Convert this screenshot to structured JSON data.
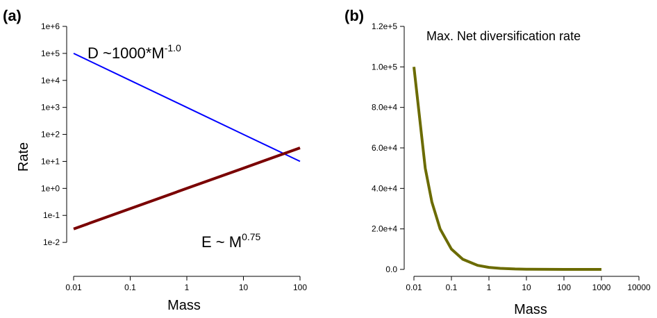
{
  "chart_data": [
    {
      "panel_label": "(a)",
      "type": "line",
      "xscale": "log",
      "yscale": "log",
      "xlabel": "Mass",
      "ylabel": "Rate",
      "xlim": [
        0.01,
        100
      ],
      "ylim": [
        0.001,
        1000000
      ],
      "x_ticks": [
        "0.01",
        "0.1",
        "1",
        "10",
        "100"
      ],
      "y_ticks": [
        "1e-2",
        "1e-1",
        "1e+0",
        "1e+1",
        "1e+2",
        "1e+3",
        "1e+4",
        "1e+5",
        "1e+6"
      ],
      "series": [
        {
          "color": "#0000ff",
          "x": [
            0.01,
            0.1,
            1,
            10,
            100
          ],
          "y": [
            100000,
            10000,
            1000,
            100,
            10
          ]
        },
        {
          "color": "#7a0000",
          "x": [
            0.01,
            0.1,
            1,
            10,
            100
          ],
          "y": [
            0.0316,
            0.178,
            1,
            5.62,
            31.6
          ]
        }
      ],
      "annotations": [
        {
          "text": "D ~1000*M",
          "sup": "-1.0"
        },
        {
          "text": "E ~ M",
          "sup": "0.75"
        }
      ]
    },
    {
      "panel_label": "(b)",
      "type": "line",
      "title": "Max. Net diversification rate",
      "xscale": "log",
      "xlabel": "Mass",
      "ylabel": "",
      "xlim": [
        0.01,
        10000
      ],
      "ylim": [
        0,
        120000
      ],
      "x_ticks": [
        "0.01",
        "0.1",
        "1",
        "10",
        "100",
        "1000",
        "10000"
      ],
      "y_ticks": [
        "0.0",
        "2.0e+4",
        "4.0e+4",
        "6.0e+4",
        "8.0e+4",
        "1.0e+5",
        "1.2e+5"
      ],
      "series": [
        {
          "color": "#6b6b00",
          "x": [
            0.01,
            0.02,
            0.03,
            0.05,
            0.1,
            0.2,
            0.5,
            1,
            2,
            5,
            10,
            100,
            1000
          ],
          "y": [
            100000,
            50000,
            33333,
            20000,
            10000,
            5000,
            2000,
            1000,
            500,
            200,
            100,
            10,
            1
          ]
        }
      ]
    }
  ]
}
